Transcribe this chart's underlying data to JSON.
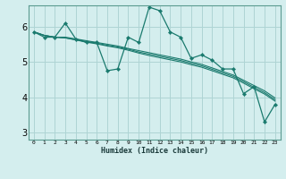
{
  "xlabel": "Humidex (Indice chaleur)",
  "ylabel": "",
  "bg_color": "#d4eeee",
  "grid_color": "#aed4d4",
  "line_color": "#1a7a6e",
  "xlim": [
    -0.5,
    23.5
  ],
  "ylim": [
    2.8,
    6.6
  ],
  "xtick_labels": [
    "0",
    "1",
    "2",
    "3",
    "4",
    "5",
    "6",
    "7",
    "8",
    "9",
    "10",
    "11",
    "12",
    "13",
    "14",
    "15",
    "16",
    "17",
    "18",
    "19",
    "20",
    "21",
    "22",
    "23"
  ],
  "ytick_values": [
    3,
    4,
    5,
    6
  ],
  "series": [
    [
      5.85,
      5.7,
      5.7,
      6.1,
      5.65,
      5.55,
      5.55,
      4.75,
      4.8,
      5.7,
      5.55,
      6.55,
      6.45,
      5.85,
      5.7,
      5.1,
      5.2,
      5.05,
      4.8,
      4.8,
      4.1,
      4.3,
      3.3,
      3.8
    ],
    [
      5.85,
      5.75,
      5.7,
      5.7,
      5.65,
      5.6,
      5.55,
      5.5,
      5.45,
      5.38,
      5.32,
      5.26,
      5.2,
      5.14,
      5.08,
      5.0,
      4.93,
      4.83,
      4.73,
      4.63,
      4.48,
      4.33,
      4.18,
      3.98
    ],
    [
      5.85,
      5.75,
      5.7,
      5.68,
      5.63,
      5.58,
      5.53,
      5.47,
      5.42,
      5.36,
      5.28,
      5.22,
      5.16,
      5.1,
      5.04,
      4.96,
      4.89,
      4.79,
      4.69,
      4.59,
      4.44,
      4.28,
      4.13,
      3.93
    ],
    [
      5.85,
      5.75,
      5.7,
      5.68,
      5.62,
      5.56,
      5.51,
      5.45,
      5.4,
      5.33,
      5.25,
      5.18,
      5.12,
      5.06,
      5.0,
      4.92,
      4.85,
      4.75,
      4.65,
      4.55,
      4.4,
      4.24,
      4.09,
      3.89
    ]
  ]
}
